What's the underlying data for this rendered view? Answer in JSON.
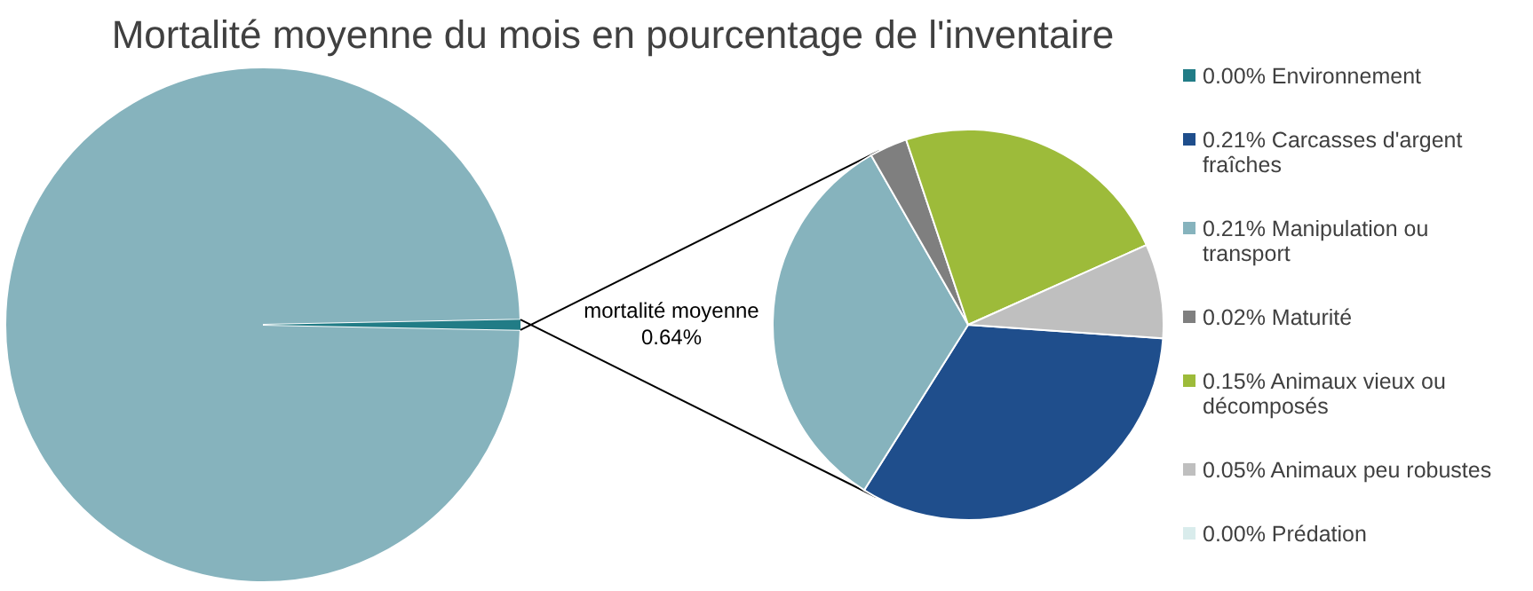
{
  "chart_data": [
    {
      "type": "pie",
      "title": "Mortalité moyenne du mois en pourcentage de l'inventaire",
      "categories": [
        null,
        "mortalité moyenne"
      ],
      "values": [
        99.36,
        0.64
      ],
      "colors": [
        "#86b3bd",
        "#217c86"
      ],
      "value_labels": [
        null,
        "0.64%"
      ]
    },
    {
      "type": "pie",
      "categories": [
        "0.00% Environnement",
        "0.21% Carcasses d'argent fraîches",
        "0.21% Manipulation ou transport",
        "0.02% Maturité",
        "0.15% Animaux vieux ou décomposés",
        "0.05% Animaux peu robustes",
        "0.00% Prédation"
      ],
      "values": [
        0.0,
        0.21,
        0.21,
        0.02,
        0.15,
        0.05,
        0.0
      ],
      "colors": [
        "#217c86",
        "#1f4e8c",
        "#86b3bd",
        "#7f7f7f",
        "#9dbb3a",
        "#bfbfbf",
        "#d9ecec"
      ],
      "legend": "right"
    }
  ]
}
